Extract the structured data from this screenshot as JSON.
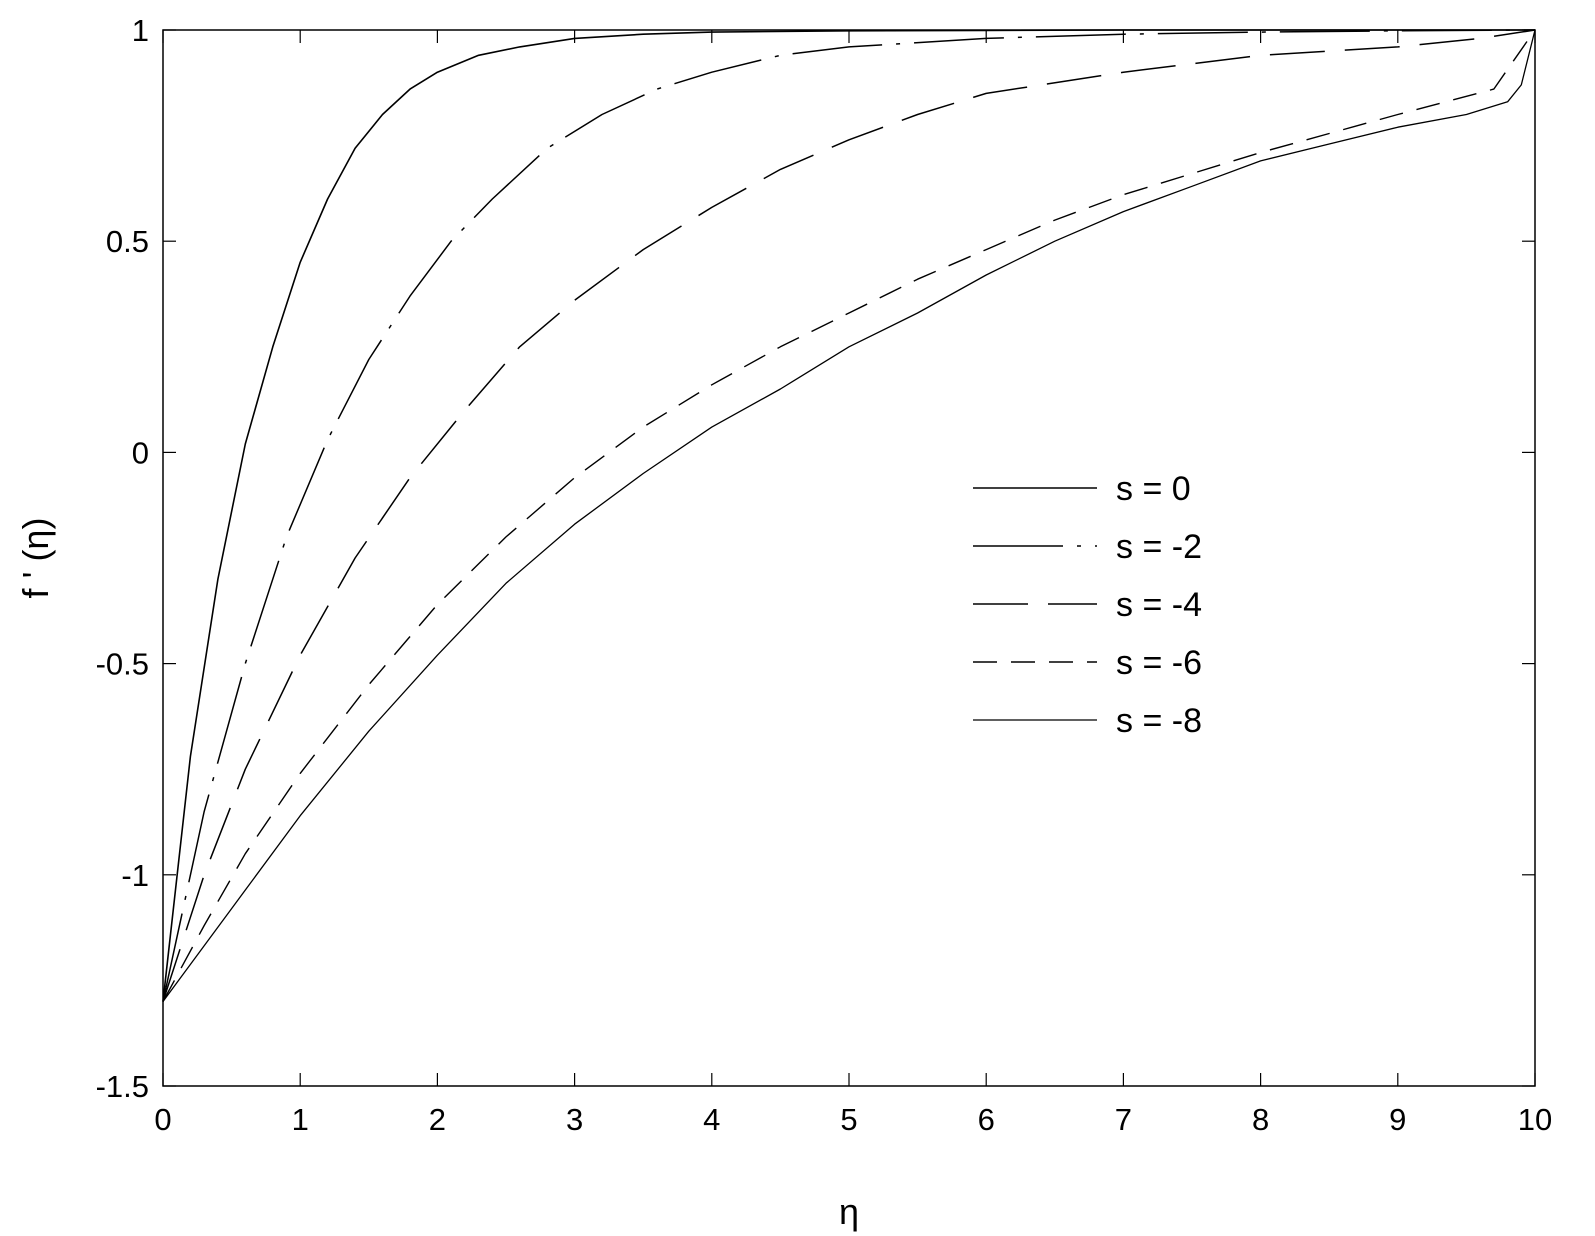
{
  "chart_data": {
    "type": "line",
    "title": "",
    "xlabel": "η",
    "ylabel": "f ' (η)",
    "xlim": [
      0,
      10
    ],
    "ylim": [
      -1.5,
      1
    ],
    "xticks": [
      "0",
      "1",
      "2",
      "3",
      "4",
      "5",
      "6",
      "7",
      "8",
      "9",
      "10"
    ],
    "yticks": [
      "1",
      "0.5",
      "0",
      "-0.5",
      "-1",
      "-1.5"
    ],
    "grid": false,
    "legend": "center-right",
    "colors": {
      "line": "#000000",
      "background": "#ffffff"
    },
    "series": [
      {
        "name": "s = 0",
        "dash": "solid",
        "x": [
          0,
          0.2,
          0.4,
          0.6,
          0.8,
          1.0,
          1.2,
          1.4,
          1.6,
          1.8,
          2.0,
          2.3,
          2.6,
          3.0,
          3.5,
          4,
          5,
          6,
          7,
          8,
          9,
          10
        ],
        "y": [
          -1.3,
          -0.72,
          -0.3,
          0.02,
          0.25,
          0.45,
          0.6,
          0.72,
          0.8,
          0.86,
          0.9,
          0.94,
          0.96,
          0.98,
          0.99,
          0.995,
          0.998,
          0.999,
          1,
          1,
          1,
          1
        ]
      },
      {
        "name": "s = -2",
        "dash": "long-dash-dot",
        "x": [
          0,
          0.3,
          0.6,
          0.9,
          1.2,
          1.5,
          1.8,
          2.1,
          2.4,
          2.8,
          3.2,
          3.6,
          4.0,
          4.5,
          5,
          6,
          7,
          8,
          9,
          10
        ],
        "y": [
          -1.3,
          -0.85,
          -0.5,
          -0.2,
          0.03,
          0.22,
          0.37,
          0.5,
          0.6,
          0.72,
          0.8,
          0.86,
          0.9,
          0.94,
          0.96,
          0.98,
          0.99,
          0.995,
          0.998,
          1
        ]
      },
      {
        "name": "s = -4",
        "dash": "long-dash",
        "x": [
          0,
          0.3,
          0.6,
          1.0,
          1.4,
          1.8,
          2.2,
          2.6,
          3.0,
          3.5,
          4.0,
          4.5,
          5,
          5.5,
          6,
          7,
          8,
          9,
          9.6,
          10
        ],
        "y": [
          -1.3,
          -1.0,
          -0.75,
          -0.48,
          -0.25,
          -0.06,
          0.1,
          0.25,
          0.36,
          0.48,
          0.58,
          0.67,
          0.74,
          0.8,
          0.85,
          0.9,
          0.94,
          0.96,
          0.98,
          1
        ]
      },
      {
        "name": "s = -6",
        "dash": "dash",
        "x": [
          0,
          0.3,
          0.6,
          1.0,
          1.5,
          2.0,
          2.5,
          3.0,
          3.5,
          4.0,
          4.5,
          5,
          5.5,
          6,
          6.5,
          7,
          8,
          9,
          9.7,
          10
        ],
        "y": [
          -1.3,
          -1.12,
          -0.95,
          -0.76,
          -0.55,
          -0.36,
          -0.2,
          -0.06,
          0.06,
          0.16,
          0.25,
          0.33,
          0.41,
          0.48,
          0.55,
          0.61,
          0.71,
          0.8,
          0.86,
          1
        ]
      },
      {
        "name": "s = -8",
        "dash": "solid-thin",
        "x": [
          0,
          0.5,
          1.0,
          1.5,
          2.0,
          2.5,
          3.0,
          3.5,
          4.0,
          4.5,
          5,
          5.5,
          6,
          6.5,
          7,
          7.5,
          8,
          8.5,
          9,
          9.5,
          9.8,
          9.9,
          10
        ],
        "y": [
          -1.3,
          -1.08,
          -0.86,
          -0.66,
          -0.48,
          -0.31,
          -0.17,
          -0.05,
          0.06,
          0.15,
          0.25,
          0.33,
          0.42,
          0.5,
          0.57,
          0.63,
          0.69,
          0.73,
          0.77,
          0.8,
          0.83,
          0.87,
          1
        ]
      }
    ]
  }
}
